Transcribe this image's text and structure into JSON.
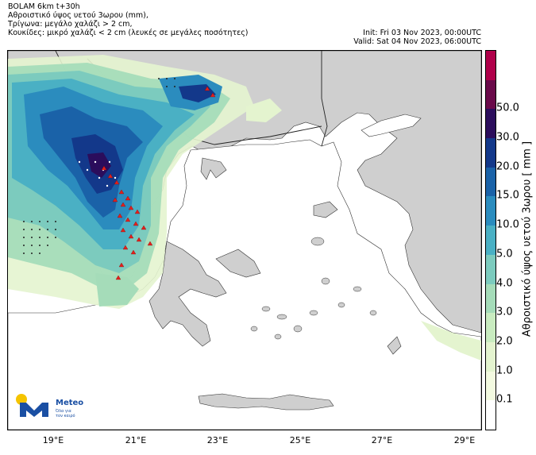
{
  "header": {
    "line1": "BOLAM 6km t+30h",
    "line2": "Αθροιστικό ύψος υετού 3ωρου (mm),",
    "line3": "Τρίγωνα: μεγάλο χαλάζι > 2 cm,",
    "line4": "Κουκίδες: μικρό χαλάζι < 2 cm (λευκές σε μεγάλες ποσότητες)",
    "init": "Init: Fri 03 Nov 2023, 00:00UTC",
    "valid": "Valid: Sat 04 Nov 2023, 06:00UTC"
  },
  "longitude_labels": [
    "19°E",
    "21°E",
    "23°E",
    "25°E",
    "27°E",
    "29°E"
  ],
  "colorbar": {
    "label": "Αθροιστικό ύψος υετού 3ωρου [ mm ]",
    "ticks": [
      "0.1",
      "1.0",
      "2.0",
      "3.0",
      "4.0",
      "5.0",
      "10.0",
      "15.0",
      "20.0",
      "30.0",
      "50.0"
    ],
    "colors": [
      "#ffffff",
      "#f3fae0",
      "#e4f4cf",
      "#c9ecc0",
      "#a5dcb9",
      "#7ccbbe",
      "#4ab0c4",
      "#2b8cbe",
      "#1a62a8",
      "#13388a",
      "#2b0d5c",
      "#6a0a4a",
      "#b0004a"
    ]
  },
  "logo": {
    "name": "Meteo",
    "tagline": "Όλα για τον καιρό",
    "colors": {
      "sun": "#f5c400",
      "mark": "#1a4fa3"
    }
  },
  "colors": {
    "land": "#cfcfcf",
    "sea": "#ffffff",
    "border": "#222222",
    "hail_triangle": "#e2201c"
  }
}
